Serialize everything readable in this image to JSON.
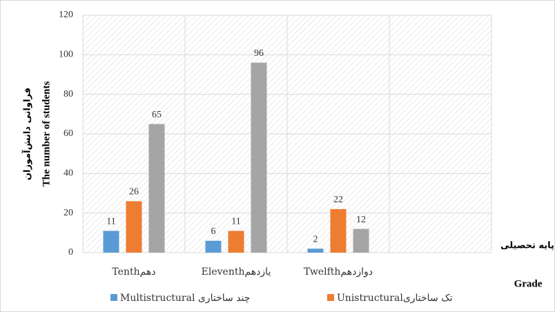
{
  "chart_data": {
    "type": "bar",
    "categories": [
      "Tenthدهم",
      "Eleventhیازدهم",
      "Twelfthدوازدهم",
      null
    ],
    "series": [
      {
        "name": "Multistructural چند ساختاری",
        "color": "#5b9bd5",
        "values": [
          11,
          6,
          2,
          null
        ]
      },
      {
        "name": "Unistructuralتک ساختاری",
        "color": "#ed7d31",
        "values": [
          26,
          11,
          22,
          null
        ]
      },
      {
        "color": "#a5a5a5",
        "values": [
          65,
          96,
          12,
          null
        ]
      }
    ],
    "ylabel": "The number of students",
    "ylabel_fa": "فراوانی دانش‌آموزان",
    "xlabel": "Grade",
    "xlabel_fa": "پایه تحصیلی",
    "ylim": [
      0,
      120
    ],
    "yticks": [
      0,
      20,
      40,
      60,
      80,
      100,
      120
    ],
    "grid": true
  }
}
